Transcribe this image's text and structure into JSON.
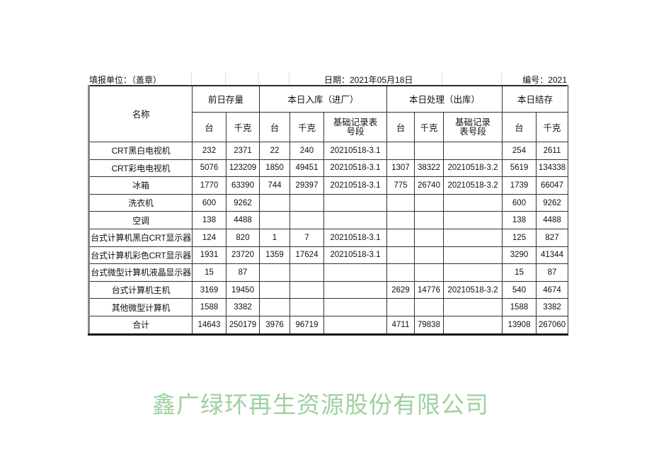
{
  "header": {
    "unit_label": "填报单位：（盖章）",
    "date_label": "日期：2021年05月18日",
    "number_label": "编号：2021"
  },
  "columns": {
    "name": "名称",
    "prev_stock": "前日存量",
    "inbound": "本日入库（进厂）",
    "processed": "本日处理（出库）",
    "closing": "本日结存",
    "units": "台",
    "kg": "千克",
    "record": "基础记录表号段"
  },
  "rows": [
    {
      "name": "CRT黑白电视机",
      "p_u": "232",
      "p_kg": "2371",
      "i_u": "22",
      "i_kg": "240",
      "i_rec": "20210518-3.1",
      "o_u": "",
      "o_kg": "",
      "o_rec": "",
      "c_u": "254",
      "c_kg": "2611"
    },
    {
      "name": "CRT彩电电视机",
      "p_u": "5076",
      "p_kg": "123209",
      "i_u": "1850",
      "i_kg": "49451",
      "i_rec": "20210518-3.1",
      "o_u": "1307",
      "o_kg": "38322",
      "o_rec": "20210518-3.2",
      "c_u": "5619",
      "c_kg": "134338"
    },
    {
      "name": "冰箱",
      "p_u": "1770",
      "p_kg": "63390",
      "i_u": "744",
      "i_kg": "29397",
      "i_rec": "20210518-3.1",
      "o_u": "775",
      "o_kg": "26740",
      "o_rec": "20210518-3.2",
      "c_u": "1739",
      "c_kg": "66047"
    },
    {
      "name": "洗衣机",
      "p_u": "600",
      "p_kg": "9262",
      "i_u": "",
      "i_kg": "",
      "i_rec": "",
      "o_u": "",
      "o_kg": "",
      "o_rec": "",
      "c_u": "600",
      "c_kg": "9262"
    },
    {
      "name": "空调",
      "p_u": "138",
      "p_kg": "4488",
      "i_u": "",
      "i_kg": "",
      "i_rec": "",
      "o_u": "",
      "o_kg": "",
      "o_rec": "",
      "c_u": "138",
      "c_kg": "4488"
    },
    {
      "name": "台式计算机黑白CRT显示器",
      "p_u": "124",
      "p_kg": "820",
      "i_u": "1",
      "i_kg": "7",
      "i_rec": "20210518-3.1",
      "o_u": "",
      "o_kg": "",
      "o_rec": "",
      "c_u": "125",
      "c_kg": "827"
    },
    {
      "name": "台式计算机彩色CRT显示器",
      "p_u": "1931",
      "p_kg": "23720",
      "i_u": "1359",
      "i_kg": "17624",
      "i_rec": "20210518-3.1",
      "o_u": "",
      "o_kg": "",
      "o_rec": "",
      "c_u": "3290",
      "c_kg": "41344"
    },
    {
      "name": "台式微型计算机液晶显示器",
      "p_u": "15",
      "p_kg": "87",
      "i_u": "",
      "i_kg": "",
      "i_rec": "",
      "o_u": "",
      "o_kg": "",
      "o_rec": "",
      "c_u": "15",
      "c_kg": "87"
    },
    {
      "name": "台式计算机主机",
      "p_u": "3169",
      "p_kg": "19450",
      "i_u": "",
      "i_kg": "",
      "i_rec": "",
      "o_u": "2629",
      "o_kg": "14776",
      "o_rec": "20210518-3.2",
      "c_u": "540",
      "c_kg": "4674"
    },
    {
      "name": "其他微型计算机",
      "p_u": "1588",
      "p_kg": "3382",
      "i_u": "",
      "i_kg": "",
      "i_rec": "",
      "o_u": "",
      "o_kg": "",
      "o_rec": "",
      "c_u": "1588",
      "c_kg": "3382"
    },
    {
      "name": "合计",
      "p_u": "14643",
      "p_kg": "250179",
      "i_u": "3976",
      "i_kg": "96719",
      "i_rec": "",
      "o_u": "4711",
      "o_kg": "79838",
      "o_rec": "",
      "c_u": "13908",
      "c_kg": "267060"
    }
  ],
  "watermark": "鑫广绿环再生资源股份有限公司",
  "colors": {
    "watermark": "#50aa50",
    "border": "#333333"
  }
}
